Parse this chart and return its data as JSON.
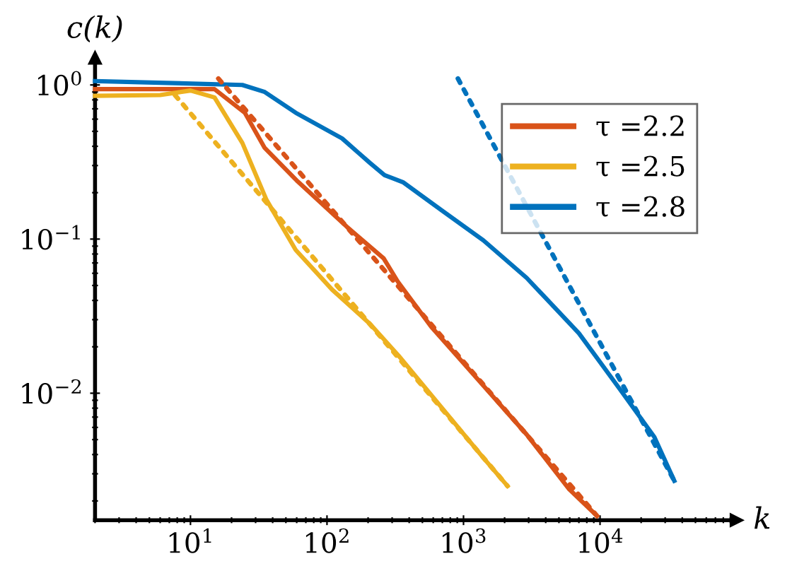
{
  "chart_data": {
    "type": "line",
    "xlabel": "k",
    "ylabel": "c(k)",
    "log": "xy",
    "legend": "top right",
    "grid": false,
    "xlim": [
      2,
      100000
    ],
    "ylim": [
      0.0015,
      1.5
    ],
    "xticks": [
      {
        "value": 10,
        "label": "10$^{1}$"
      },
      {
        "value": 100,
        "label": "10$^{2}$"
      },
      {
        "value": 1000,
        "label": "10$^{3}$"
      },
      {
        "value": 10000,
        "label": "10$^{4}$"
      }
    ],
    "yticks": [
      {
        "value": 0.01,
        "label": "10$^{−2}$"
      },
      {
        "value": 0.1,
        "label": "10$^{−1}$"
      },
      {
        "value": 1,
        "label": "10$^{0}$"
      }
    ],
    "series": [
      {
        "name": "τ =2.2",
        "color": "#d95319",
        "line_style": "solid",
        "x": [
          2,
          15,
          25,
          35,
          60,
          140,
          260,
          330,
          580,
          1800,
          2900,
          5900,
          9500
        ],
        "values": [
          0.94,
          0.94,
          0.66,
          0.39,
          0.24,
          0.12,
          0.075,
          0.053,
          0.027,
          0.0087,
          0.0054,
          0.0024,
          0.0016
        ]
      },
      {
        "name": "τ =2.5",
        "color": "#edb120",
        "line_style": "solid",
        "x": [
          2,
          6,
          10,
          15,
          24,
          36,
          59,
          109,
          208,
          335,
          1400,
          2100
        ],
        "values": [
          0.85,
          0.86,
          0.92,
          0.83,
          0.42,
          0.18,
          0.085,
          0.047,
          0.028,
          0.0175,
          0.0038,
          0.0025
        ]
      },
      {
        "name": "τ =2.8",
        "color": "#0072bd",
        "line_style": "solid",
        "x": [
          2,
          24,
          35,
          59,
          129,
          208,
          264,
          360,
          690,
          1400,
          2900,
          7000,
          14000,
          25000,
          35000
        ],
        "values": [
          1.06,
          1.0,
          0.9,
          0.66,
          0.45,
          0.31,
          0.26,
          0.234,
          0.154,
          0.098,
          0.056,
          0.0245,
          0.0106,
          0.0052,
          0.0027
        ]
      },
      {
        "color": "#d95319",
        "line_style": "dotted",
        "x": [
          16,
          9500
        ],
        "values": [
          1.1,
          0.0016
        ]
      },
      {
        "color": "#edb120",
        "line_style": "dotted",
        "x": [
          7.7,
          2100
        ],
        "values": [
          0.86,
          0.0025
        ]
      },
      {
        "color": "#0072bd",
        "line_style": "dotted",
        "x": [
          910,
          35000
        ],
        "values": [
          1.1,
          0.0027
        ]
      }
    ]
  }
}
